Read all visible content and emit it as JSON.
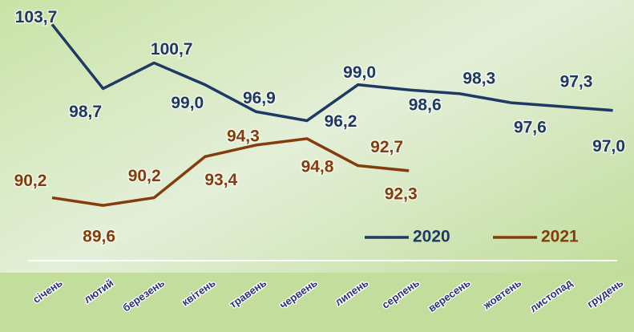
{
  "chart_data": {
    "type": "line",
    "categories": [
      "січень",
      "лютий",
      "березень",
      "квітень",
      "травень",
      "червень",
      "липень",
      "серпень",
      "вересень",
      "жовтень",
      "листопад",
      "грудень"
    ],
    "series": [
      {
        "name": "2020",
        "color": "#1f3864",
        "values": [
          103.7,
          98.7,
          100.7,
          99.0,
          96.9,
          96.2,
          99.0,
          98.6,
          98.3,
          97.6,
          97.3,
          97.0
        ],
        "value_labels": [
          "103,7",
          "98,7",
          "100,7",
          "99,0",
          "96,9",
          "96,2",
          "99,0",
          "98,6",
          "98,3",
          "97,6",
          "97,3",
          "97,0"
        ]
      },
      {
        "name": "2021",
        "color": "#843c0c",
        "values": [
          90.2,
          89.6,
          90.2,
          93.4,
          94.3,
          94.8,
          92.7,
          92.3,
          null,
          null,
          null,
          null
        ],
        "value_labels": [
          "90,2",
          "89,6",
          "90,2",
          "93,4",
          "94,3",
          "94,8",
          "92,7",
          "92,3",
          null,
          null,
          null,
          null
        ]
      }
    ],
    "ylim": [
      85.3,
      105.6
    ],
    "legend": "lower right"
  }
}
